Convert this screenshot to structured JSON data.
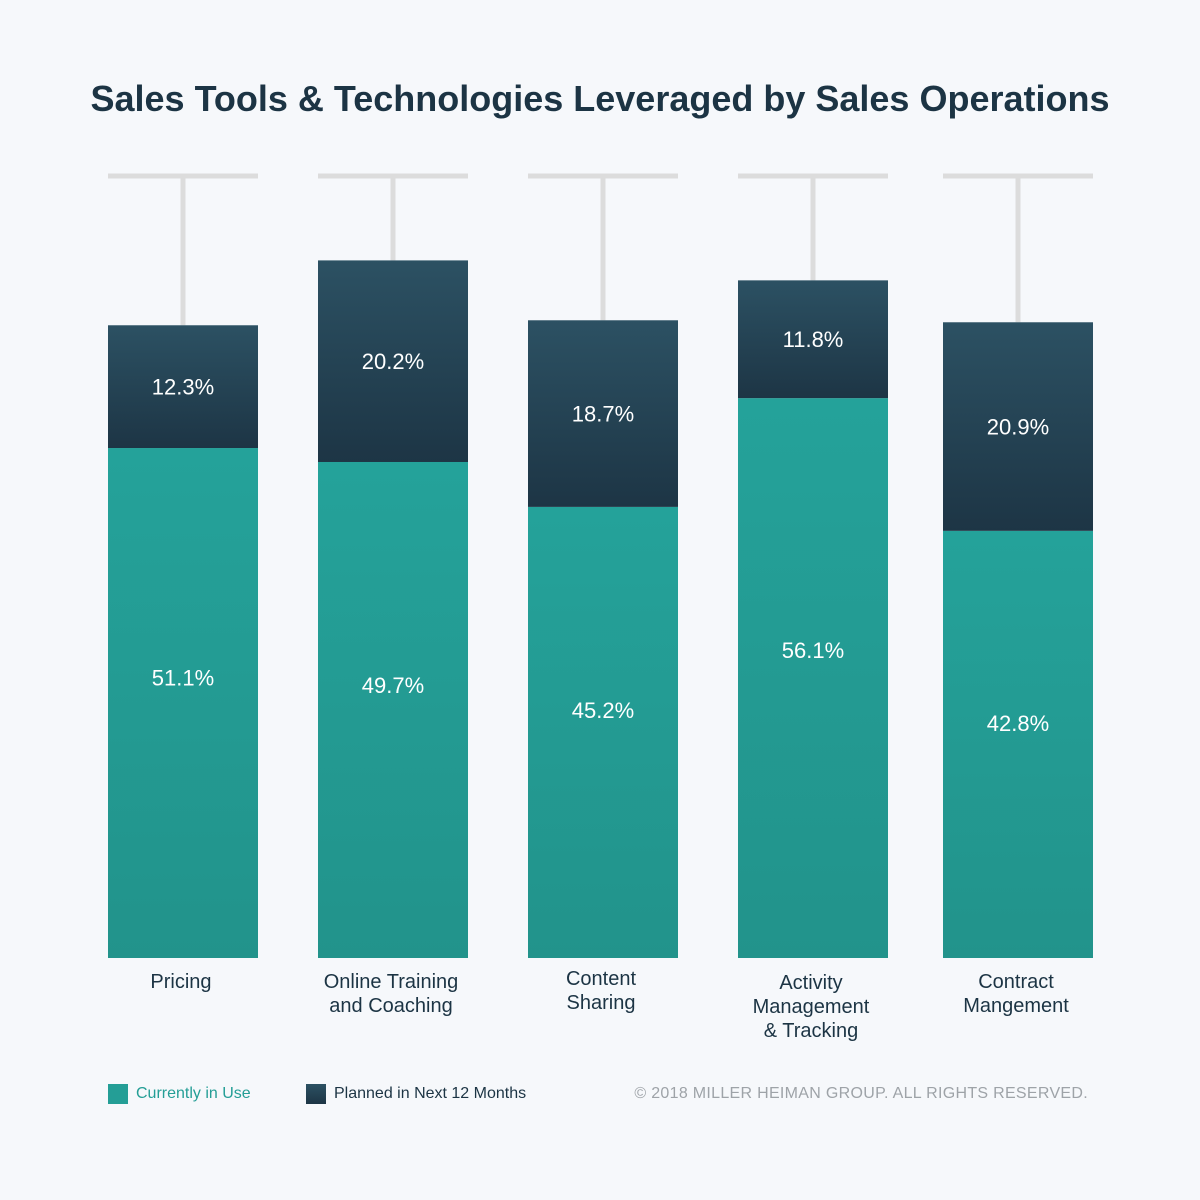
{
  "title": "Sales Tools & Technologies Leveraged by Sales Operations",
  "legend": {
    "current": "Currently in Use",
    "planned": "Planned in Next 12 Months"
  },
  "copyright": "© 2018 MILLER HEIMAN GROUP.  ALL RIGHTS RESERVED.",
  "colors": {
    "current": "#249e96",
    "planned_top": "#2c5163",
    "planned_bottom": "#1d3545",
    "cap": "#dcdcdc",
    "category_text": "#1c3444"
  },
  "chart_data": {
    "type": "bar",
    "stacked": true,
    "categories": [
      [
        "Pricing"
      ],
      [
        "Online Training",
        "and Coaching"
      ],
      [
        "Content",
        "Sharing"
      ],
      [
        "Activity",
        "Management",
        "& Tracking"
      ],
      [
        "Contract",
        "Mangement"
      ]
    ],
    "series": [
      {
        "name": "Currently in Use",
        "values": [
          51.1,
          49.7,
          45.2,
          56.1,
          42.8
        ],
        "labels": [
          "51.1%",
          "49.7%",
          "45.2%",
          "56.1%",
          "42.8%"
        ]
      },
      {
        "name": "Planned in Next 12 Months",
        "values": [
          12.3,
          20.2,
          18.7,
          11.8,
          20.9
        ],
        "labels": [
          "12.3%",
          "20.2%",
          "18.7%",
          "11.8%",
          "20.9%"
        ]
      }
    ],
    "ylim": [
      0,
      78
    ],
    "xlabel": "",
    "ylabel": "",
    "grid": false,
    "legend_position": "bottom-left"
  }
}
